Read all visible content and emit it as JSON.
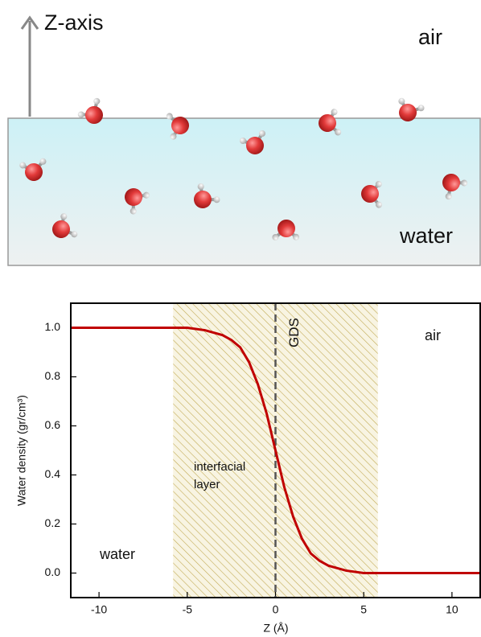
{
  "illustration": {
    "z_axis_label": "Z-axis",
    "air_label": "air",
    "water_label": "water"
  },
  "chart_data": {
    "type": "line",
    "x_label": "Z (Å)",
    "y_label": "Water density (gr/cm³)",
    "x": [
      -11.6,
      -6,
      -5,
      -4,
      -3,
      -2.5,
      -2,
      -1.5,
      -1,
      -0.5,
      0,
      0.5,
      1,
      1.5,
      2,
      2.5,
      3,
      4,
      5,
      6,
      11.6
    ],
    "values": [
      1.0,
      1.0,
      1.0,
      0.99,
      0.97,
      0.95,
      0.92,
      0.86,
      0.77,
      0.65,
      0.5,
      0.35,
      0.23,
      0.14,
      0.08,
      0.05,
      0.03,
      0.01,
      0.0,
      0.0,
      0.0
    ],
    "color": "#c00000",
    "xlim": [
      -11.6,
      11.6
    ],
    "ylim": [
      -0.1,
      1.1
    ],
    "xticks": [
      -10,
      -5,
      0,
      5,
      10
    ],
    "yticks": [
      {
        "value": 0,
        "label": "0.0"
      },
      {
        "value": 0.2,
        "label": "0.2"
      },
      {
        "value": 0.4,
        "label": "0.4"
      },
      {
        "value": 0.6,
        "label": "0.6"
      },
      {
        "value": 0.8,
        "label": "0.8"
      },
      {
        "value": 1,
        "label": "1.0"
      }
    ],
    "shade": [
      -5.8,
      5.8
    ],
    "gds_x": 0,
    "gds_label": "GDS",
    "interfacial_label": [
      "interfacial",
      "layer"
    ],
    "air_label": "air",
    "water_label": "water"
  }
}
